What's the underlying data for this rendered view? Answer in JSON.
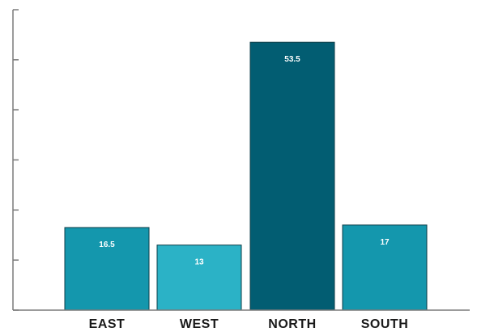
{
  "chart_data": {
    "type": "bar",
    "categories": [
      "EAST",
      "WEST",
      "NORTH",
      "SOUTH"
    ],
    "values": [
      16.5,
      13,
      53.5,
      17
    ],
    "value_labels": [
      "16.5",
      "13",
      "53.5",
      "17"
    ],
    "bar_colors": [
      "#1497ad",
      "#2bb2c6",
      "#025d72",
      "#1497ad"
    ],
    "ylim": [
      0,
      60
    ],
    "ytick_step": 10,
    "y_tick_labels_shown": false,
    "grid": false,
    "legend": "none",
    "axis_color": "#7a7a7a",
    "label_color": "#1a1a1a"
  }
}
